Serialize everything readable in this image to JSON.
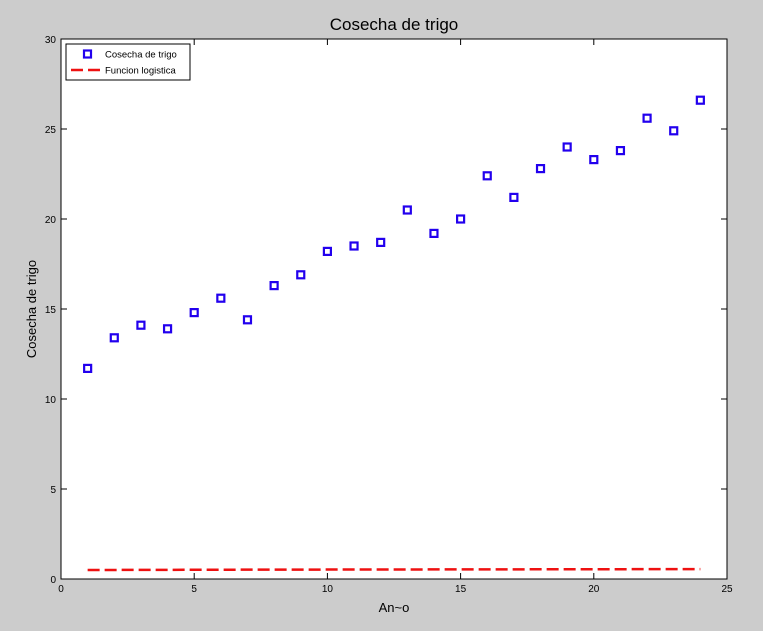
{
  "chart_data": {
    "type": "scatter",
    "title": "Cosecha de trigo",
    "xlabel": "An~o",
    "ylabel": "Cosecha de trigo",
    "xlim": [
      0,
      25
    ],
    "ylim": [
      0,
      30
    ],
    "xticks": [
      0,
      5,
      10,
      15,
      20,
      25
    ],
    "yticks": [
      0,
      5,
      10,
      15,
      20,
      25,
      30
    ],
    "grid": false,
    "legend_position": "top-left",
    "series": [
      {
        "name": "Cosecha de trigo",
        "marker": "square",
        "color": "#2200ee",
        "x": [
          1,
          2,
          3,
          4,
          5,
          6,
          7,
          8,
          9,
          10,
          11,
          12,
          13,
          14,
          15,
          16,
          17,
          18,
          19,
          20,
          21,
          22,
          23,
          24
        ],
        "y": [
          11.7,
          13.4,
          14.1,
          13.9,
          14.8,
          15.6,
          14.4,
          16.3,
          16.9,
          18.2,
          18.5,
          18.7,
          20.5,
          19.2,
          20.0,
          22.4,
          21.2,
          22.8,
          24.0,
          23.3,
          23.8,
          25.6,
          24.9,
          26.6
        ]
      },
      {
        "name": "Funcion logistica",
        "line_style": "dashed",
        "color": "#ee1111",
        "x": [
          1,
          7.5,
          24
        ],
        "y": [
          0.5,
          0.52,
          0.55
        ]
      }
    ]
  }
}
